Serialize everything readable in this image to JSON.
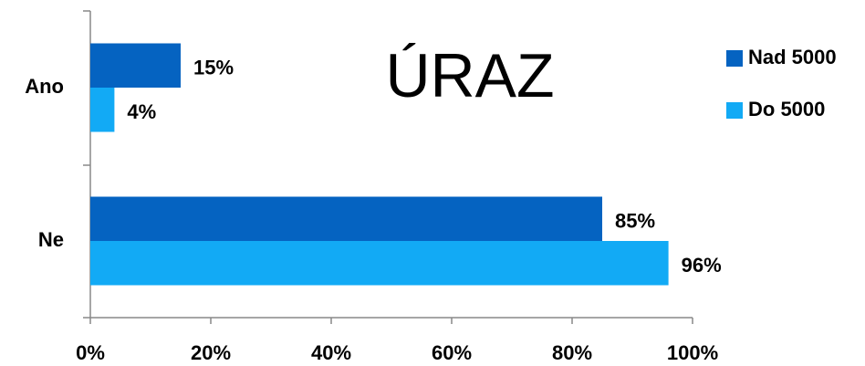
{
  "chart_data": {
    "type": "bar",
    "orientation": "horizontal",
    "title": "ÚRAZ",
    "categories": [
      "Ano",
      "Ne"
    ],
    "series": [
      {
        "name": "Nad 5000",
        "color": "#0563c1",
        "values": [
          15,
          85
        ],
        "value_labels": [
          "15%",
          "85%"
        ]
      },
      {
        "name": "Do 5000",
        "color": "#12aaf5",
        "values": [
          4,
          96
        ],
        "value_labels": [
          "4%",
          "96%"
        ]
      }
    ],
    "xlim": [
      0,
      100
    ],
    "xticks": [
      {
        "value": 0,
        "label": "0%"
      },
      {
        "value": 20,
        "label": "20%"
      },
      {
        "value": 40,
        "label": "40%"
      },
      {
        "value": 60,
        "label": "60%"
      },
      {
        "value": 80,
        "label": "80%"
      },
      {
        "value": 100,
        "label": "100%"
      }
    ],
    "legend": "right"
  }
}
